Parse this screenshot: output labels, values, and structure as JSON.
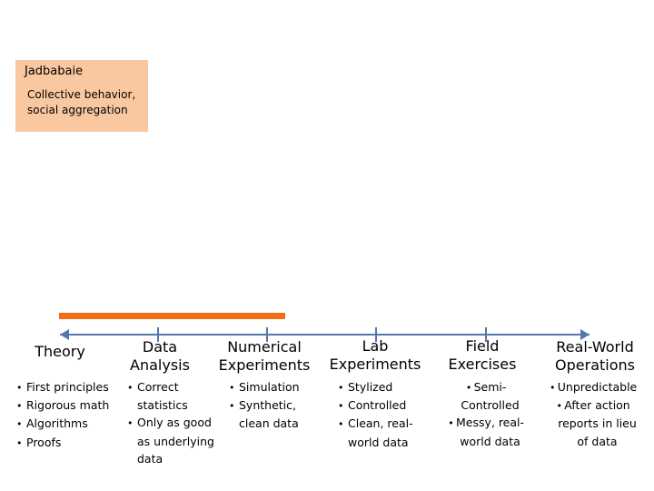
{
  "box": {
    "title": "Jadbabaie",
    "description": "Collective behavior, social aggregation"
  },
  "colors": {
    "box_fill": "#fac8a0",
    "range_bar": "#f06e14",
    "axis": "#5577aa"
  },
  "columns": [
    {
      "title": "Theory",
      "bullets": [
        "First principles",
        "Rigorous math",
        "Algorithms",
        "Proofs"
      ]
    },
    {
      "title": "Data\nAnalysis",
      "bullets": [
        "Correct statistics",
        "Only as good as underlying data"
      ]
    },
    {
      "title": "Numerical\nExperiments",
      "bullets": [
        "Simulation",
        "Synthetic, clean data"
      ]
    },
    {
      "title": "Lab\nExperiments",
      "bullets": [
        "Stylized",
        "Controlled",
        "Clean, real-world data"
      ]
    },
    {
      "title": "Field\nExercises",
      "bullets": [
        "Semi-Controlled",
        "Messy, real-world data"
      ]
    },
    {
      "title": "Real-World\nOperations",
      "bullets": [
        "Unpredictable",
        "After action reports in lieu of data"
      ]
    }
  ]
}
